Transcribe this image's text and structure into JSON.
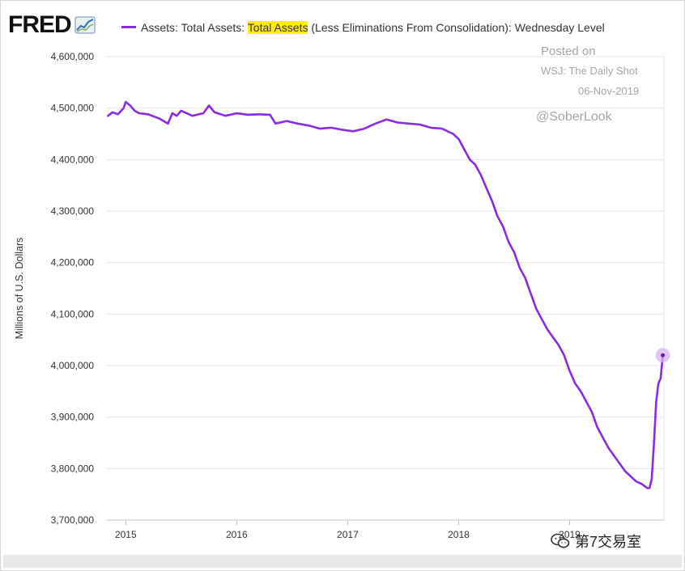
{
  "logo": {
    "text": "FRED",
    "icon": "chart-trend-icon"
  },
  "legend": {
    "text_before": "Assets: Total Assets: ",
    "text_highlight": "Total Assets",
    "text_after": " (Less Eliminations From Consolidation): Wednesday Level",
    "color": "#8a2be2",
    "highlight_color": "#fff000"
  },
  "watermark": {
    "posted_on": "Posted on",
    "source": "WSJ: The Daily Shot",
    "date": "06-Nov-2019",
    "handle": "@SoberLook"
  },
  "weixin": {
    "icon": "wechat-icon",
    "text": "第7交易室"
  },
  "chart_data": {
    "type": "line",
    "title": "",
    "xlabel": "",
    "ylabel": "Millions of U.S. Dollars",
    "ylim": [
      3700000,
      4600000
    ],
    "yticks": [
      4600000,
      4500000,
      4400000,
      4300000,
      4200000,
      4100000,
      4000000,
      3900000,
      3800000,
      3700000
    ],
    "ytick_labels": [
      "4,600,000",
      "4,500,000",
      "4,400,000",
      "4,300,000",
      "4,200,000",
      "4,100,000",
      "4,000,000",
      "3,900,000",
      "3,800,000",
      "3,700,000"
    ],
    "xlim": [
      2014.83,
      2019.85
    ],
    "xticks": [
      2015,
      2016,
      2017,
      2018,
      2019
    ],
    "xtick_labels": [
      "2015",
      "2016",
      "2017",
      "2018",
      "2019"
    ],
    "grid": true,
    "series": [
      {
        "color": "#8a2be2",
        "x": [
          2014.84,
          2014.88,
          2014.93,
          2014.98,
          2015.0,
          2015.04,
          2015.08,
          2015.12,
          2015.2,
          2015.3,
          2015.38,
          2015.42,
          2015.46,
          2015.5,
          2015.6,
          2015.7,
          2015.75,
          2015.8,
          2015.9,
          2016.0,
          2016.1,
          2016.2,
          2016.3,
          2016.35,
          2016.45,
          2016.55,
          2016.65,
          2016.75,
          2016.85,
          2016.95,
          2017.05,
          2017.15,
          2017.25,
          2017.35,
          2017.45,
          2017.55,
          2017.65,
          2017.75,
          2017.85,
          2017.95,
          2018.0,
          2018.05,
          2018.1,
          2018.15,
          2018.2,
          2018.25,
          2018.3,
          2018.35,
          2018.4,
          2018.45,
          2018.5,
          2018.55,
          2018.6,
          2018.65,
          2018.7,
          2018.75,
          2018.8,
          2018.85,
          2018.9,
          2018.95,
          2019.0,
          2019.05,
          2019.1,
          2019.15,
          2019.2,
          2019.25,
          2019.3,
          2019.35,
          2019.4,
          2019.45,
          2019.5,
          2019.55,
          2019.6,
          2019.65,
          2019.7,
          2019.72,
          2019.74,
          2019.76,
          2019.78,
          2019.8,
          2019.82,
          2019.84
        ],
        "y": [
          4485000,
          4492000,
          4488000,
          4500000,
          4512000,
          4505000,
          4495000,
          4490000,
          4488000,
          4480000,
          4470000,
          4490000,
          4485000,
          4495000,
          4485000,
          4490000,
          4505000,
          4492000,
          4485000,
          4490000,
          4487000,
          4488000,
          4487000,
          4470000,
          4475000,
          4470000,
          4466000,
          4460000,
          4462000,
          4458000,
          4455000,
          4460000,
          4470000,
          4478000,
          4472000,
          4470000,
          4468000,
          4462000,
          4460000,
          4450000,
          4440000,
          4420000,
          4400000,
          4390000,
          4370000,
          4345000,
          4320000,
          4290000,
          4270000,
          4240000,
          4220000,
          4190000,
          4170000,
          4140000,
          4110000,
          4090000,
          4070000,
          4055000,
          4040000,
          4020000,
          3990000,
          3965000,
          3950000,
          3930000,
          3910000,
          3880000,
          3860000,
          3840000,
          3825000,
          3810000,
          3795000,
          3785000,
          3775000,
          3770000,
          3762000,
          3762000,
          3780000,
          3850000,
          3930000,
          3965000,
          3975000,
          4020000
        ]
      }
    ],
    "last_point": {
      "x": 2019.84,
      "y": 4020000
    }
  }
}
